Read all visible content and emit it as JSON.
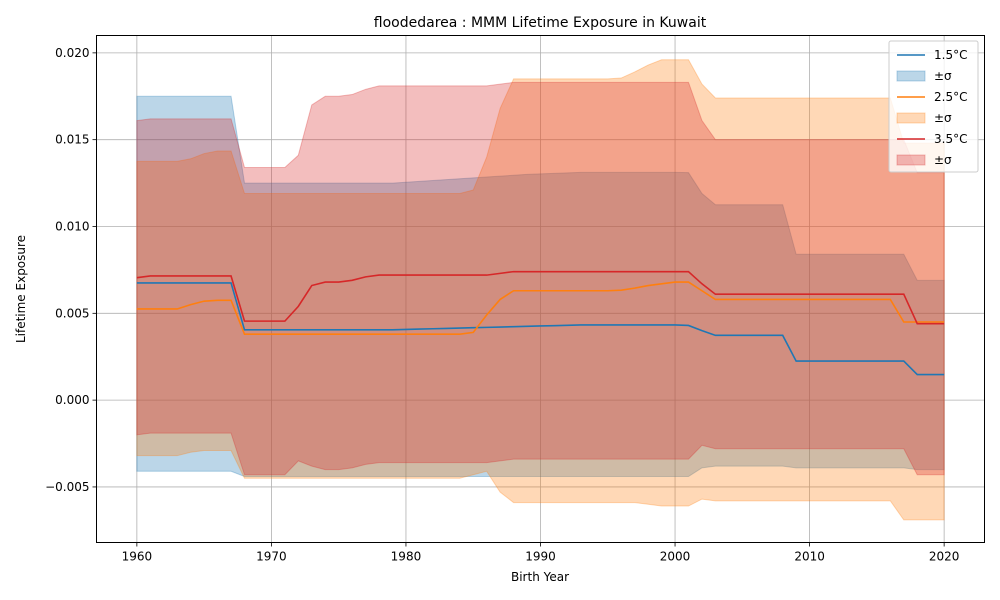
{
  "chart_data": {
    "type": "line",
    "title": "floodedarea : MMM Lifetime Exposure in Kuwait",
    "xlabel": "Birth Year",
    "ylabel": "Lifetime Exposure",
    "xlim": [
      1957,
      2023
    ],
    "ylim": [
      -0.0082,
      0.021
    ],
    "xticks": [
      1960,
      1970,
      1980,
      1990,
      2000,
      2010,
      2020
    ],
    "xtick_labels": [
      "1960",
      "1970",
      "1980",
      "1990",
      "2000",
      "2010",
      "2020"
    ],
    "yticks": [
      -0.005,
      0.0,
      0.005,
      0.01,
      0.015,
      0.02
    ],
    "ytick_labels": [
      "−0.005",
      "0.000",
      "0.005",
      "0.010",
      "0.015",
      "0.020"
    ],
    "grid": true,
    "legend_position": "top-right",
    "x": [
      1960,
      1961,
      1962,
      1963,
      1964,
      1965,
      1966,
      1967,
      1968,
      1969,
      1970,
      1971,
      1972,
      1973,
      1974,
      1975,
      1976,
      1977,
      1978,
      1979,
      1980,
      1981,
      1982,
      1983,
      1984,
      1985,
      1986,
      1987,
      1988,
      1989,
      1990,
      1991,
      1992,
      1993,
      1994,
      1995,
      1996,
      1997,
      1998,
      1999,
      2000,
      2001,
      2002,
      2003,
      2004,
      2005,
      2006,
      2007,
      2008,
      2009,
      2010,
      2011,
      2012,
      2013,
      2014,
      2015,
      2016,
      2017,
      2018,
      2019,
      2020
    ],
    "series": [
      {
        "name": "1.5°C",
        "band_name": "±σ",
        "color": "#1f77b4",
        "mean": [
          0.00675,
          0.00675,
          0.00675,
          0.00675,
          0.00675,
          0.00675,
          0.00675,
          0.00675,
          0.00405,
          0.00405,
          0.00405,
          0.00405,
          0.00405,
          0.00405,
          0.00405,
          0.00405,
          0.00405,
          0.00405,
          0.00405,
          0.00405,
          0.00407,
          0.00409,
          0.00411,
          0.00413,
          0.00415,
          0.00417,
          0.00419,
          0.00421,
          0.00423,
          0.00425,
          0.00427,
          0.00429,
          0.00431,
          0.00433,
          0.00433,
          0.00433,
          0.00433,
          0.00433,
          0.00433,
          0.00433,
          0.00433,
          0.0043,
          0.004,
          0.00373,
          0.00373,
          0.00373,
          0.00373,
          0.00373,
          0.00373,
          0.00225,
          0.00225,
          0.00225,
          0.00225,
          0.00225,
          0.00225,
          0.00225,
          0.00225,
          0.00225,
          0.00147,
          0.00147,
          0.00147
        ],
        "upper": [
          0.0175,
          0.0175,
          0.0175,
          0.0175,
          0.0175,
          0.0175,
          0.0175,
          0.0175,
          0.0125,
          0.0125,
          0.0125,
          0.0125,
          0.0125,
          0.0125,
          0.0125,
          0.0125,
          0.0125,
          0.0125,
          0.0125,
          0.0125,
          0.01255,
          0.0126,
          0.01265,
          0.0127,
          0.01275,
          0.0128,
          0.01285,
          0.0129,
          0.01295,
          0.013,
          0.01303,
          0.01306,
          0.01309,
          0.01312,
          0.01312,
          0.01312,
          0.01312,
          0.01312,
          0.01312,
          0.01312,
          0.01312,
          0.0131,
          0.0119,
          0.01125,
          0.01125,
          0.01125,
          0.01125,
          0.01125,
          0.01125,
          0.0084,
          0.0084,
          0.0084,
          0.0084,
          0.0084,
          0.0084,
          0.0084,
          0.0084,
          0.0084,
          0.0069,
          0.0069,
          0.0069
        ],
        "lower": [
          -0.0041,
          -0.0041,
          -0.0041,
          -0.0041,
          -0.0041,
          -0.0041,
          -0.0041,
          -0.0041,
          -0.0044,
          -0.0044,
          -0.0044,
          -0.0044,
          -0.0044,
          -0.0044,
          -0.0044,
          -0.0044,
          -0.0044,
          -0.0044,
          -0.0044,
          -0.0044,
          -0.0044,
          -0.0044,
          -0.0044,
          -0.0044,
          -0.0044,
          -0.0044,
          -0.0044,
          -0.0044,
          -0.0044,
          -0.0044,
          -0.0044,
          -0.0044,
          -0.0044,
          -0.0044,
          -0.0044,
          -0.0044,
          -0.0044,
          -0.0044,
          -0.0044,
          -0.0044,
          -0.0044,
          -0.0044,
          -0.0039,
          -0.0038,
          -0.0038,
          -0.0038,
          -0.0038,
          -0.0038,
          -0.0038,
          -0.0039,
          -0.0039,
          -0.0039,
          -0.0039,
          -0.0039,
          -0.0039,
          -0.0039,
          -0.0039,
          -0.0039,
          -0.004,
          -0.004,
          -0.004
        ]
      },
      {
        "name": "2.5°C",
        "band_name": "±σ",
        "color": "#ff7f0e",
        "mean": [
          0.00525,
          0.00525,
          0.00525,
          0.00525,
          0.0055,
          0.0057,
          0.00575,
          0.00575,
          0.0038,
          0.0038,
          0.0038,
          0.0038,
          0.0038,
          0.0038,
          0.0038,
          0.0038,
          0.0038,
          0.0038,
          0.0038,
          0.0038,
          0.0038,
          0.0038,
          0.0038,
          0.0038,
          0.0038,
          0.0039,
          0.0049,
          0.0058,
          0.0063,
          0.0063,
          0.0063,
          0.0063,
          0.0063,
          0.0063,
          0.0063,
          0.0063,
          0.00633,
          0.00645,
          0.0066,
          0.0067,
          0.0068,
          0.0068,
          0.0063,
          0.0058,
          0.0058,
          0.0058,
          0.0058,
          0.0058,
          0.0058,
          0.0058,
          0.0058,
          0.0058,
          0.0058,
          0.0058,
          0.0058,
          0.0058,
          0.0058,
          0.0045,
          0.0045,
          0.0045,
          0.0045
        ],
        "upper": [
          0.01375,
          0.01375,
          0.01375,
          0.01375,
          0.0139,
          0.0142,
          0.01435,
          0.01435,
          0.0119,
          0.0119,
          0.0119,
          0.0119,
          0.0119,
          0.0119,
          0.0119,
          0.0119,
          0.0119,
          0.0119,
          0.0119,
          0.0119,
          0.0119,
          0.0119,
          0.0119,
          0.0119,
          0.0119,
          0.0121,
          0.014,
          0.0168,
          0.0185,
          0.0185,
          0.0185,
          0.0185,
          0.0185,
          0.0185,
          0.0185,
          0.0185,
          0.01855,
          0.0189,
          0.0193,
          0.0196,
          0.0196,
          0.0196,
          0.0182,
          0.0174,
          0.0174,
          0.0174,
          0.0174,
          0.0174,
          0.0174,
          0.0174,
          0.0174,
          0.0174,
          0.0174,
          0.0174,
          0.0174,
          0.0174,
          0.0174,
          0.0148,
          0.0148,
          0.0148,
          0.0148
        ],
        "lower": [
          -0.0032,
          -0.0032,
          -0.0032,
          -0.0032,
          -0.003,
          -0.0029,
          -0.0029,
          -0.0029,
          -0.0045,
          -0.0045,
          -0.0045,
          -0.0045,
          -0.0045,
          -0.0045,
          -0.0045,
          -0.0045,
          -0.0045,
          -0.0045,
          -0.0045,
          -0.0045,
          -0.0045,
          -0.0045,
          -0.0045,
          -0.0045,
          -0.0045,
          -0.0043,
          -0.0041,
          -0.0053,
          -0.0059,
          -0.0059,
          -0.0059,
          -0.0059,
          -0.0059,
          -0.0059,
          -0.0059,
          -0.0059,
          -0.0059,
          -0.0059,
          -0.006,
          -0.0061,
          -0.0061,
          -0.0061,
          -0.0057,
          -0.0058,
          -0.0058,
          -0.0058,
          -0.0058,
          -0.0058,
          -0.0058,
          -0.0058,
          -0.0058,
          -0.0058,
          -0.0058,
          -0.0058,
          -0.0058,
          -0.0058,
          -0.0058,
          -0.0069,
          -0.0069,
          -0.0069,
          -0.0069
        ]
      },
      {
        "name": "3.5°C",
        "band_name": "±σ",
        "color": "#d62728",
        "mean": [
          0.00705,
          0.00715,
          0.00715,
          0.00715,
          0.00715,
          0.00715,
          0.00715,
          0.00715,
          0.00455,
          0.00455,
          0.00455,
          0.00455,
          0.0054,
          0.0066,
          0.0068,
          0.0068,
          0.0069,
          0.0071,
          0.0072,
          0.0072,
          0.0072,
          0.0072,
          0.0072,
          0.0072,
          0.0072,
          0.0072,
          0.0072,
          0.0073,
          0.0074,
          0.0074,
          0.0074,
          0.0074,
          0.0074,
          0.0074,
          0.0074,
          0.0074,
          0.0074,
          0.0074,
          0.0074,
          0.0074,
          0.0074,
          0.0074,
          0.0067,
          0.0061,
          0.0061,
          0.0061,
          0.0061,
          0.0061,
          0.0061,
          0.0061,
          0.0061,
          0.0061,
          0.0061,
          0.0061,
          0.0061,
          0.0061,
          0.0061,
          0.0061,
          0.0044,
          0.0044,
          0.0044
        ],
        "upper": [
          0.0161,
          0.0162,
          0.0162,
          0.0162,
          0.0162,
          0.0162,
          0.0162,
          0.0162,
          0.0134,
          0.0134,
          0.0134,
          0.0134,
          0.0141,
          0.017,
          0.0175,
          0.0175,
          0.0176,
          0.0179,
          0.0181,
          0.0181,
          0.0181,
          0.0181,
          0.0181,
          0.0181,
          0.0181,
          0.0181,
          0.0181,
          0.0182,
          0.0183,
          0.0183,
          0.0183,
          0.0183,
          0.0183,
          0.0183,
          0.0183,
          0.0183,
          0.0183,
          0.0183,
          0.0183,
          0.0183,
          0.0183,
          0.0183,
          0.0161,
          0.015,
          0.015,
          0.015,
          0.015,
          0.015,
          0.015,
          0.015,
          0.015,
          0.015,
          0.015,
          0.015,
          0.015,
          0.015,
          0.015,
          0.015,
          0.0131,
          0.0131,
          0.0131
        ],
        "lower": [
          -0.002,
          -0.0019,
          -0.0019,
          -0.0019,
          -0.0019,
          -0.0019,
          -0.0019,
          -0.0019,
          -0.0043,
          -0.0043,
          -0.0043,
          -0.0043,
          -0.0035,
          -0.0038,
          -0.004,
          -0.004,
          -0.0039,
          -0.0037,
          -0.0036,
          -0.0036,
          -0.0036,
          -0.0036,
          -0.0036,
          -0.0036,
          -0.0036,
          -0.0036,
          -0.0036,
          -0.0035,
          -0.0034,
          -0.0034,
          -0.0034,
          -0.0034,
          -0.0034,
          -0.0034,
          -0.0034,
          -0.0034,
          -0.0034,
          -0.0034,
          -0.0034,
          -0.0034,
          -0.0034,
          -0.0034,
          -0.0026,
          -0.0028,
          -0.0028,
          -0.0028,
          -0.0028,
          -0.0028,
          -0.0028,
          -0.0028,
          -0.0028,
          -0.0028,
          -0.0028,
          -0.0028,
          -0.0028,
          -0.0028,
          -0.0028,
          -0.0028,
          -0.0043,
          -0.0043,
          -0.0043
        ]
      }
    ]
  }
}
